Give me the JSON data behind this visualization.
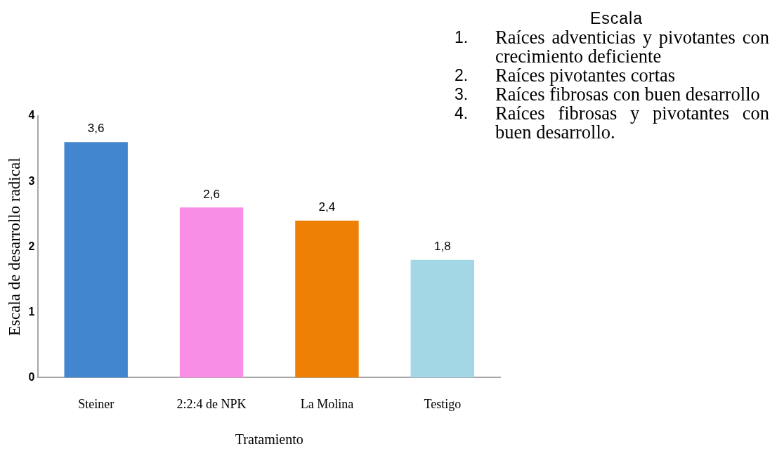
{
  "chart_data": {
    "type": "bar",
    "categories": [
      "Steiner",
      "2:2:4 de NPK",
      "La Molina",
      "Testigo"
    ],
    "values": [
      3.6,
      2.6,
      2.4,
      1.8
    ],
    "colors": [
      "#4286d0",
      "#f98ee6",
      "#ee8006",
      "#a3d7e5"
    ],
    "value_labels": [
      "3,6",
      "2,6",
      "2,4",
      "1,8"
    ],
    "xlabel": "Tratamiento",
    "ylabel": "Escala de desarrollo radical",
    "ylim": [
      0,
      4
    ],
    "yticks": [
      0,
      1,
      2,
      3,
      4
    ],
    "grid": false,
    "annotations": [
      "Escala",
      "1. Raíces adventicias y pivotantes con crecimiento deficiente",
      "2. Raíces pivotantes cortas",
      "3. Raíces fibrosas con buen desarrollo",
      "4. Raíces fibrosas y pivotantes con buen desarrollo."
    ]
  }
}
